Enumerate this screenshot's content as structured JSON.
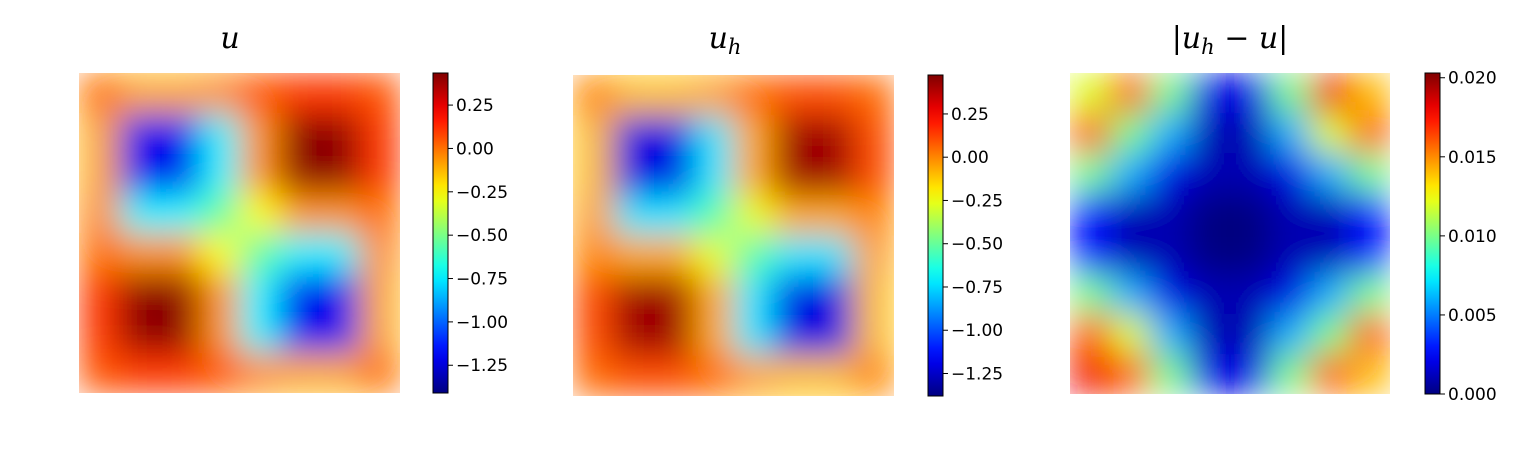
{
  "chart_data": [
    {
      "type": "heatmap",
      "title": "u",
      "colormap": "jet",
      "clim": [
        -1.41,
        0.435
      ],
      "colorbar_ticks": [
        0.25,
        {
          "value": 0,
          "label": "0.00"
        },
        {
          "value": -0.25,
          "label": "−0.25"
        },
        {
          "value": -0.5,
          "label": "−0.50"
        },
        {
          "value": -0.75,
          "label": "−0.75"
        },
        {
          "value": -1,
          "label": "−1.00"
        },
        {
          "value": -1.25,
          "label": "−1.25"
        }
      ],
      "z": [
        [
          0.0,
          -0.1,
          -0.1,
          -0.05,
          0.05,
          0.1,
          0.1,
          0.05
        ],
        [
          -0.1,
          -1.21,
          -1.21,
          -0.74,
          -0.06,
          0.41,
          0.41,
          0.1
        ],
        [
          -0.1,
          -1.21,
          -1.21,
          -0.74,
          -0.06,
          0.41,
          0.41,
          0.1
        ],
        [
          -0.05,
          -0.74,
          -0.74,
          -0.54,
          -0.26,
          -0.06,
          -0.06,
          0.0
        ],
        [
          0.0,
          -0.06,
          -0.06,
          -0.26,
          -0.54,
          -0.74,
          -0.74,
          -0.05
        ],
        [
          0.1,
          0.41,
          0.41,
          -0.06,
          -0.74,
          -1.21,
          -1.21,
          -0.1
        ],
        [
          0.1,
          0.41,
          0.41,
          -0.06,
          -0.74,
          -1.21,
          -1.21,
          -0.1
        ],
        [
          0.05,
          0.1,
          0.1,
          0.05,
          -0.05,
          -0.1,
          -0.1,
          0.0
        ]
      ]
    },
    {
      "type": "heatmap",
      "title": "u",
      "title_sub": "h",
      "colormap": "jet",
      "clim": [
        -1.38,
        0.475
      ],
      "colorbar_ticks": [
        0.25,
        {
          "value": 0,
          "label": "0.00"
        },
        {
          "value": -0.25,
          "label": "−0.25"
        },
        {
          "value": -0.5,
          "label": "−0.50"
        },
        {
          "value": -0.75,
          "label": "−0.75"
        },
        {
          "value": -1,
          "label": "−1.00"
        },
        {
          "value": -1.25,
          "label": "−1.25"
        }
      ],
      "z": [
        [
          0.0,
          -0.1,
          -0.1,
          -0.05,
          0.05,
          0.1,
          0.1,
          0.05
        ],
        [
          -0.1,
          -1.2,
          -1.2,
          -0.73,
          -0.06,
          0.42,
          0.42,
          0.1
        ],
        [
          -0.1,
          -1.2,
          -1.2,
          -0.73,
          -0.06,
          0.42,
          0.42,
          0.1
        ],
        [
          -0.05,
          -0.73,
          -0.73,
          -0.53,
          -0.26,
          -0.06,
          -0.06,
          0.0
        ],
        [
          0.0,
          -0.06,
          -0.06,
          -0.26,
          -0.53,
          -0.73,
          -0.73,
          -0.05
        ],
        [
          0.1,
          0.42,
          0.42,
          -0.06,
          -0.73,
          -1.2,
          -1.2,
          -0.1
        ],
        [
          0.1,
          0.42,
          0.42,
          -0.06,
          -0.73,
          -1.2,
          -1.2,
          -0.1
        ],
        [
          0.05,
          0.1,
          0.1,
          0.05,
          -0.05,
          -0.1,
          -0.1,
          0.0
        ]
      ]
    },
    {
      "type": "heatmap",
      "title_before": "|",
      "title": "u",
      "title_sub": "h",
      "title_after": " − u|",
      "colormap": "jet",
      "clim": [
        0,
        0.0203
      ],
      "colorbar_ticks": [
        {
          "value": 0,
          "label": "0.000"
        },
        {
          "value": 0.005,
          "label": "0.005"
        },
        {
          "value": 0.01,
          "label": "0.010"
        },
        {
          "value": 0.015,
          "label": "0.015"
        },
        {
          "value": 0.02,
          "label": "0.020"
        }
      ],
      "z": [
        [
          0.012,
          0.016,
          0.01,
          0.002,
          0.002,
          0.01,
          0.018,
          0.014
        ],
        [
          0.016,
          0.01,
          0.006,
          0.001,
          0.001,
          0.006,
          0.012,
          0.016
        ],
        [
          0.01,
          0.006,
          0.002,
          0.001,
          0.001,
          0.002,
          0.006,
          0.01
        ],
        [
          0.003,
          0.001,
          0.001,
          0.0,
          0.0,
          0.001,
          0.001,
          0.003
        ],
        [
          0.003,
          0.001,
          0.001,
          0.0,
          0.0,
          0.001,
          0.001,
          0.003
        ],
        [
          0.01,
          0.006,
          0.002,
          0.001,
          0.001,
          0.002,
          0.006,
          0.01
        ],
        [
          0.016,
          0.012,
          0.006,
          0.001,
          0.001,
          0.006,
          0.01,
          0.016
        ],
        [
          0.018,
          0.016,
          0.01,
          0.002,
          0.002,
          0.01,
          0.016,
          0.014
        ]
      ]
    }
  ]
}
